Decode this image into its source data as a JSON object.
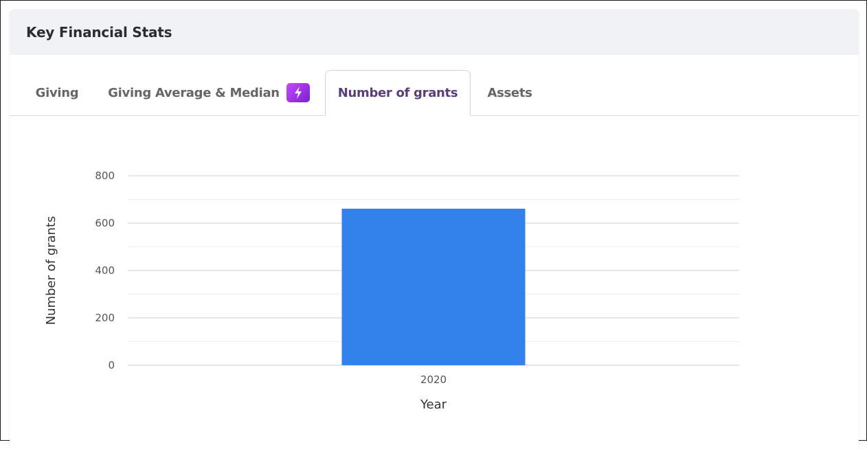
{
  "card": {
    "title": "Key Financial Stats"
  },
  "tabs": [
    {
      "label": "Giving",
      "active": false
    },
    {
      "label": "Giving Average & Median",
      "active": false,
      "icon": "lightning-bolt-icon"
    },
    {
      "label": "Number of grants",
      "active": true
    },
    {
      "label": "Assets",
      "active": false
    }
  ],
  "colors": {
    "bar": "#3381ea",
    "active_tab": "#5a3d7a",
    "header_bg": "#f0f3f6",
    "badge": "#9b30e8"
  },
  "chart_data": {
    "type": "bar",
    "categories": [
      "2020"
    ],
    "values": [
      661
    ],
    "xlabel": "Year",
    "ylabel": "Number of grants",
    "ylim": [
      0,
      800
    ],
    "yticks": [
      0,
      200,
      400,
      600,
      800
    ],
    "grid": true
  }
}
